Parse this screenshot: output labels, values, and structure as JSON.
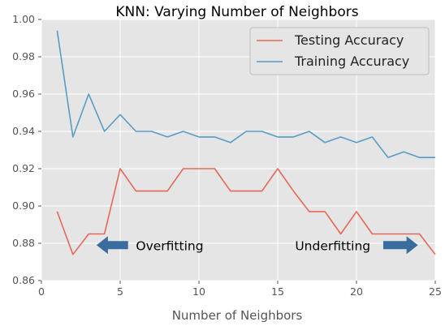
{
  "chart_data": {
    "type": "line",
    "title": "KNN: Varying Number of Neighbors",
    "xlabel": "Number of Neighbors",
    "ylabel": "",
    "xlim": [
      0,
      25
    ],
    "ylim": [
      0.86,
      1.0
    ],
    "xticks": [
      0,
      5,
      10,
      15,
      20,
      25
    ],
    "yticks": [
      "0.86",
      "0.88",
      "0.90",
      "0.92",
      "0.94",
      "0.96",
      "0.98",
      "1.00"
    ],
    "grid": true,
    "legend_position": "top-right",
    "x": [
      1,
      2,
      3,
      4,
      5,
      6,
      7,
      8,
      9,
      10,
      11,
      12,
      13,
      14,
      15,
      16,
      17,
      18,
      19,
      20,
      21,
      22,
      23,
      24,
      25
    ],
    "series": [
      {
        "name": "Testing Accuracy",
        "color": "#E24A33",
        "values": [
          0.897,
          0.874,
          0.885,
          0.885,
          0.92,
          0.908,
          0.908,
          0.908,
          0.92,
          0.92,
          0.92,
          0.908,
          0.908,
          0.908,
          0.92,
          0.908,
          0.897,
          0.897,
          0.885,
          0.897,
          0.885,
          0.885,
          0.885,
          0.885,
          0.874
        ]
      },
      {
        "name": "Training Accuracy",
        "color": "#348ABD",
        "values": [
          0.994,
          0.937,
          0.96,
          0.94,
          0.949,
          0.94,
          0.94,
          0.937,
          0.94,
          0.937,
          0.937,
          0.934,
          0.94,
          0.94,
          0.937,
          0.937,
          0.94,
          0.934,
          0.937,
          0.934,
          0.937,
          0.926,
          0.929,
          0.926,
          0.926
        ]
      }
    ],
    "annotations": [
      {
        "text": "Overfitting",
        "x": 6.0,
        "y": 0.879,
        "arrow_from": 5.5,
        "arrow_to": 3.5,
        "arrow_direction": "left"
      },
      {
        "text": "Underfitting",
        "x": 16.1,
        "y": 0.879,
        "arrow_from": 21.7,
        "arrow_to": 23.9,
        "arrow_direction": "right"
      }
    ],
    "colors": {
      "plot_background": "#E5E5E5",
      "grid": "#FFFFFF",
      "arrow": "#3B6C9E"
    }
  }
}
